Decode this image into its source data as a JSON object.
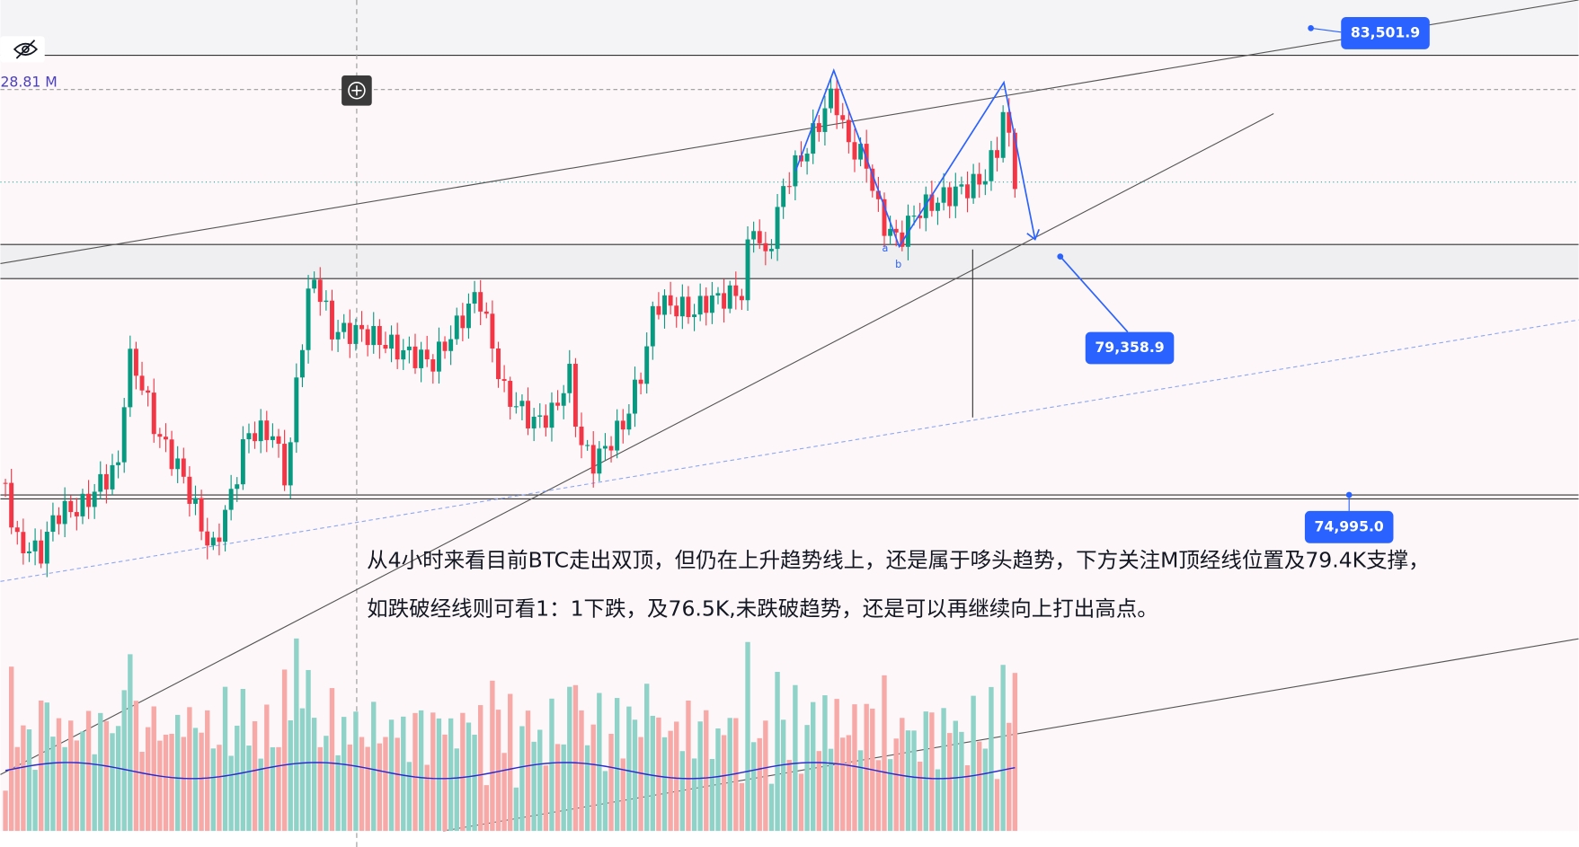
{
  "toolbar": {
    "volume_label": "28.81 M"
  },
  "price_labels": [
    "83,501.9",
    "79,358.9",
    "74,995.0"
  ],
  "pattern_labels": [
    "a",
    "b"
  ],
  "annotation": {
    "lines": [
      "从4小时来看目前BTC走出双顶，但仍在上升趋势线上，还是属于哆头趋势，下方关注M顶经线位置及79.4K支撑，",
      "如跌破经线则可看1：1下跌，及76.5K,未跌破趋势，还是可以再继续向上打出高点。"
    ]
  }
}
